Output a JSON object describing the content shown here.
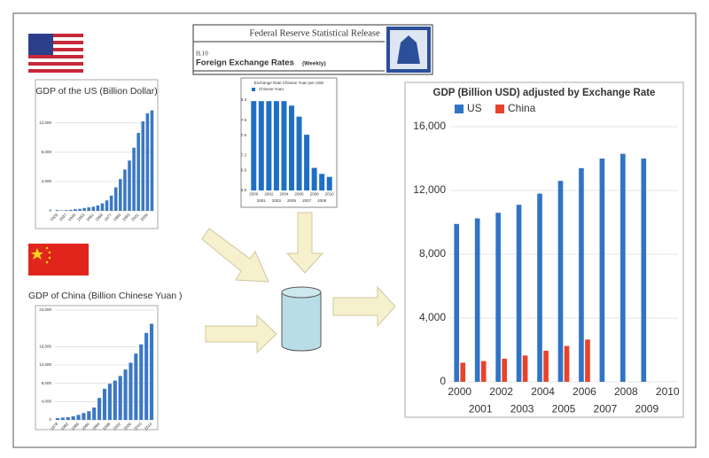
{
  "header": {
    "title": "Federal Reserve Statistical Release",
    "code": "H.10",
    "name": "Foreign Exchange Rates",
    "frequency": "(Weekly)"
  },
  "chart_data": [
    {
      "type": "bar",
      "title": "GDP of the US (Billion Dollar)",
      "color": "#3b78c4",
      "grid": true,
      "categories": [
        "1929",
        null,
        "1937",
        null,
        "1945",
        null,
        "1953",
        null,
        "1961",
        null,
        "1969",
        null,
        "1977",
        null,
        "1985",
        null,
        "1993",
        null,
        "2001",
        null,
        "2009",
        null
      ],
      "values": [
        105,
        57,
        93,
        129,
        228,
        272,
        390,
        475,
        563,
        743,
        1019,
        1425,
        2086,
        3207,
        4339,
        5641,
        6858,
        8608,
        10622,
        12200,
        13300,
        13700
      ],
      "ylim": [
        0,
        14500
      ],
      "yticks": [
        0,
        {
          "value": 4000,
          "label": "4,000"
        },
        {
          "value": 8000,
          "label": "8,000"
        },
        {
          "value": 12000,
          "label": "12,000"
        }
      ]
    },
    {
      "type": "bar",
      "title": "GDP of China (Billion Chinese Yuan )",
      "color": "#3b78c4",
      "grid": true,
      "categories": [
        "1978",
        null,
        "1982",
        null,
        "1986",
        null,
        "1990",
        null,
        "1994",
        null,
        "1998",
        null,
        "2002",
        null,
        "2006",
        null,
        "2010",
        null,
        "2014"
      ],
      "values": [
        400,
        500,
        600,
        800,
        1100,
        1500,
        1900,
        2700,
        4800,
        6800,
        7900,
        8600,
        9600,
        11000,
        12500,
        14500,
        16500,
        19000,
        21000
      ],
      "ylim": [
        0,
        24000
      ],
      "yticks": [
        0,
        {
          "value": 4000,
          "label": "4,000"
        },
        {
          "value": 8000,
          "label": "8,000"
        },
        {
          "value": 12000,
          "label": "12,000"
        },
        {
          "value": 16000,
          "label": "16,000"
        },
        {
          "value": 24000,
          "label": "24,000"
        }
      ]
    },
    {
      "type": "bar",
      "title": "Exchange Rate Chinese Yuan per USD",
      "grid": false,
      "categories": [
        "2000",
        "2001",
        "2002",
        "2003",
        "2004",
        "2005",
        "2006",
        "2007",
        "2008",
        "2009",
        "2010"
      ],
      "series": [
        {
          "name": "Chinese Yuan",
          "color": "#1f6fc4",
          "values": [
            8.28,
            8.28,
            8.28,
            8.28,
            8.28,
            8.19,
            7.97,
            7.61,
            6.95,
            6.83,
            6.77
          ]
        }
      ],
      "ylim": [
        6.5,
        8.3
      ],
      "yticks": [
        6.5,
        6.9,
        7.2,
        7.6,
        7.9,
        8.3
      ]
    },
    {
      "type": "bar",
      "title": "GDP (Billion USD) adjusted by Exchange Rate",
      "grid": true,
      "categories": [
        "2000",
        "2001",
        "2002",
        "2003",
        "2004",
        "2005",
        "2006",
        "2007",
        "2008",
        "2009",
        "2010"
      ],
      "series": [
        {
          "name": "US",
          "color": "#2f74c6",
          "values": [
            9900,
            10250,
            10600,
            11100,
            11800,
            12600,
            13400,
            14000,
            14300,
            14000,
            null
          ]
        },
        {
          "name": "China",
          "color": "#e8432a",
          "values": [
            1200,
            1300,
            1450,
            1650,
            1950,
            2250,
            2650,
            null,
            null,
            null,
            null
          ]
        }
      ],
      "ylim": [
        0,
        18500
      ],
      "yticks": [
        0,
        {
          "value": 4000,
          "label": "4,000"
        },
        {
          "value": 8000,
          "label": "8,000"
        },
        {
          "value": 12000,
          "label": "12,000"
        },
        {
          "value": 16000,
          "label": "16,000"
        }
      ]
    }
  ]
}
